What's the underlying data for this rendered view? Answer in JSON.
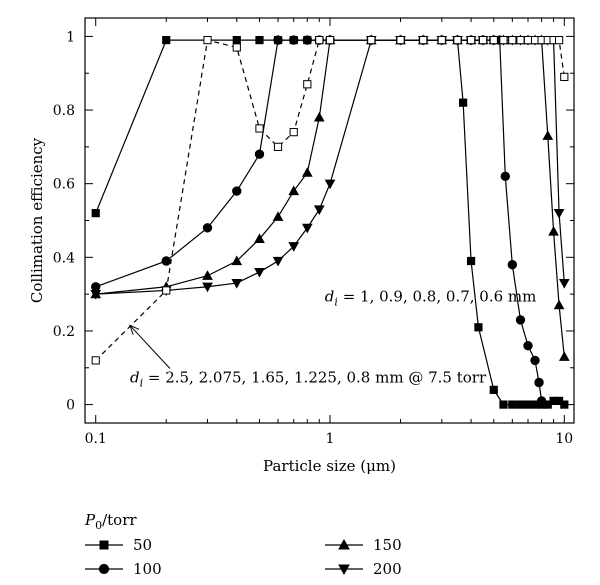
{
  "chart_data": {
    "type": "line",
    "xlabel": "Particle size (μm)",
    "ylabel": "Collimation efficiency",
    "xscale": "log",
    "xlim": [
      0.09,
      11
    ],
    "ylim": [
      -0.05,
      1.05
    ],
    "xticks": [
      {
        "value": 0.1,
        "label": "0.1"
      },
      {
        "value": 1,
        "label": "1"
      },
      {
        "value": 10,
        "label": "10"
      }
    ],
    "yticks": [
      {
        "value": 0,
        "label": "0"
      },
      {
        "value": 0.2,
        "label": "0.2"
      },
      {
        "value": 0.4,
        "label": "0.4"
      },
      {
        "value": 0.6,
        "label": "0.6"
      },
      {
        "value": 0.8,
        "label": "0.8"
      },
      {
        "value": 1,
        "label": "1"
      }
    ],
    "grid": false,
    "legend": {
      "title_main": "P",
      "title_sub": "0",
      "title_rest": "/torr",
      "placement": "bottom"
    },
    "series": [
      {
        "name": "50",
        "marker": "square-filled",
        "dash": "solid",
        "x": [
          0.1,
          0.2,
          0.4,
          0.5,
          0.6,
          0.7,
          0.8,
          0.9,
          1.0,
          1.5,
          2.0,
          2.5,
          3.0,
          3.5,
          3.7,
          4.0,
          4.3,
          5.0,
          5.5,
          6.0,
          6.5,
          7.0,
          7.5,
          8.0,
          8.5,
          9.0,
          9.5,
          10.0
        ],
        "y": [
          0.52,
          0.99,
          0.99,
          0.99,
          0.99,
          0.99,
          0.99,
          0.99,
          0.99,
          0.99,
          0.99,
          0.99,
          0.99,
          0.99,
          0.82,
          0.39,
          0.21,
          0.04,
          0.0,
          0.0,
          0.0,
          0.0,
          0.0,
          0.0,
          0.0,
          0.01,
          0.01,
          0.0
        ]
      },
      {
        "name": "100",
        "marker": "circle-filled",
        "dash": "solid",
        "x": [
          0.1,
          0.2,
          0.3,
          0.4,
          0.5,
          0.6,
          0.7,
          0.8,
          0.9,
          1.0,
          1.5,
          2.0,
          2.5,
          3.0,
          3.5,
          4.0,
          4.5,
          5.0,
          5.3,
          5.6,
          6.0,
          6.5,
          7.0,
          7.5,
          7.8,
          8.0
        ],
        "y": [
          0.32,
          0.39,
          0.48,
          0.58,
          0.68,
          0.99,
          0.99,
          0.99,
          0.99,
          0.99,
          0.99,
          0.99,
          0.99,
          0.99,
          0.99,
          0.99,
          0.99,
          0.99,
          0.99,
          0.62,
          0.38,
          0.23,
          0.16,
          0.12,
          0.06,
          0.01
        ]
      },
      {
        "name": "150",
        "marker": "triangle-up-filled",
        "dash": "solid",
        "x": [
          0.1,
          0.2,
          0.3,
          0.4,
          0.5,
          0.6,
          0.7,
          0.8,
          0.9,
          1.0,
          1.5,
          2.0,
          2.5,
          3.0,
          3.5,
          4.0,
          4.5,
          5.0,
          5.5,
          6.0,
          6.5,
          7.0,
          7.5,
          8.0,
          8.5,
          9.0,
          9.5,
          10.0
        ],
        "y": [
          0.3,
          0.32,
          0.35,
          0.39,
          0.45,
          0.51,
          0.58,
          0.63,
          0.78,
          0.99,
          0.99,
          0.99,
          0.99,
          0.99,
          0.99,
          0.99,
          0.99,
          0.99,
          0.99,
          0.99,
          0.99,
          0.99,
          0.99,
          0.99,
          0.73,
          0.47,
          0.27,
          0.13
        ]
      },
      {
        "name": "200",
        "marker": "triangle-down-filled",
        "dash": "solid",
        "x": [
          0.1,
          0.2,
          0.3,
          0.4,
          0.5,
          0.6,
          0.7,
          0.8,
          0.9,
          1.0,
          1.5,
          2.0,
          2.5,
          3.0,
          3.5,
          4.0,
          4.5,
          5.0,
          5.5,
          6.0,
          6.5,
          7.0,
          7.5,
          8.0,
          8.5,
          9.0,
          9.5,
          10.0
        ],
        "y": [
          0.3,
          0.31,
          0.32,
          0.33,
          0.36,
          0.39,
          0.43,
          0.48,
          0.53,
          0.6,
          0.99,
          0.99,
          0.99,
          0.99,
          0.99,
          0.99,
          0.99,
          0.99,
          0.99,
          0.99,
          0.99,
          0.99,
          0.99,
          0.99,
          0.99,
          0.99,
          0.52,
          0.33
        ]
      },
      {
        "name": "",
        "marker": "square-open",
        "dash": "dashed",
        "x": [
          0.1,
          0.2,
          0.3,
          0.4,
          0.5,
          0.6,
          0.7,
          0.8,
          0.9,
          1.0,
          1.5,
          2.0,
          2.5,
          3.0,
          3.5,
          4.0,
          4.5,
          5.0,
          5.5,
          6.0,
          6.5,
          7.0,
          7.5,
          8.0,
          8.5,
          9.0,
          9.5,
          10.0
        ],
        "y": [
          0.12,
          0.31,
          0.99,
          0.97,
          0.75,
          0.7,
          0.74,
          0.87,
          0.99,
          0.99,
          0.99,
          0.99,
          0.99,
          0.99,
          0.99,
          0.99,
          0.99,
          0.99,
          0.99,
          0.99,
          0.99,
          0.99,
          0.99,
          0.99,
          0.99,
          0.99,
          0.99,
          0.89
        ]
      }
    ],
    "annotations": [
      {
        "id": "annot-mm",
        "var": "d",
        "sub": "i",
        "text": " = 1, 0.9, 0.8, 0.7, 0.6 mm",
        "x": 0.95,
        "y": 0.28
      },
      {
        "id": "annot-torr",
        "var": "d",
        "sub": "i",
        "text": " = 2.5, 2.075, 1.65, 1.225, 0.8 mm @ 7.5 torr",
        "x": 0.14,
        "y": 0.06,
        "arrow_to": {
          "x": 0.14,
          "y": 0.215
        }
      }
    ]
  }
}
